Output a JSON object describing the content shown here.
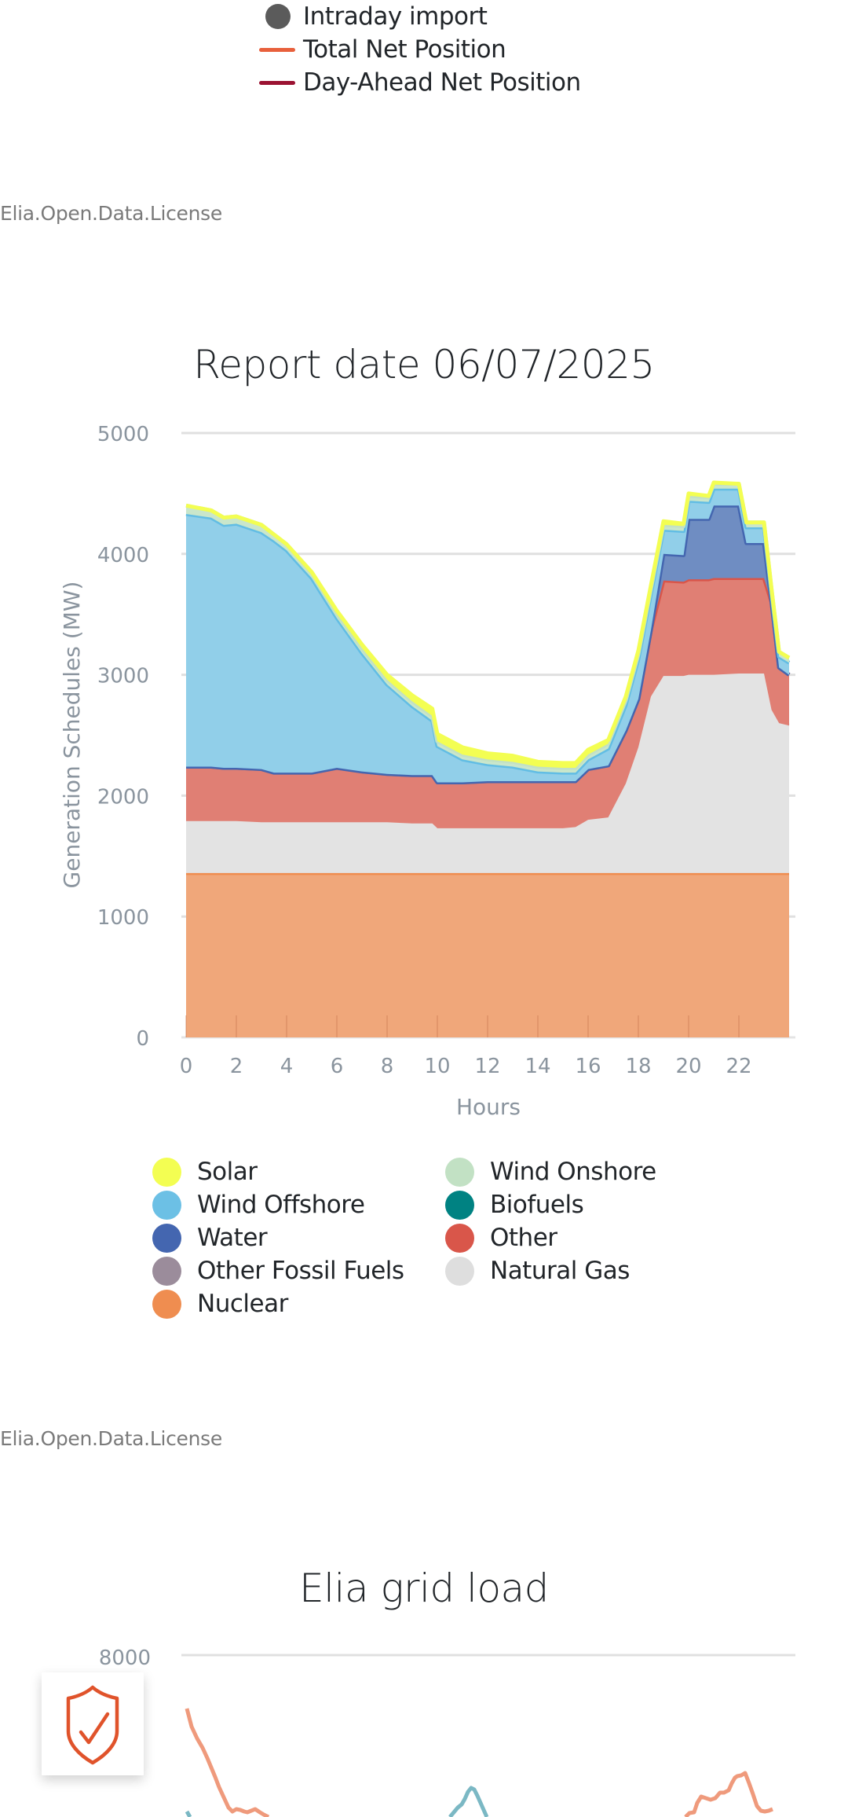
{
  "top_legend": {
    "items": [
      {
        "label": "Intraday import",
        "symbol": "circle",
        "color": "#5b5b5b"
      },
      {
        "label": "Total Net Position",
        "symbol": "line",
        "color": "#e8603c"
      },
      {
        "label": "Day-Ahead Net Position",
        "symbol": "line",
        "color": "#9b1232"
      }
    ]
  },
  "license_1": "Elia.Open.Data.License",
  "license_2": "Elia.Open.Data.License",
  "chart_data": [
    {
      "type": "area",
      "stacked": true,
      "title": "Report date 06/07/2025",
      "xlabel": "Hours",
      "ylabel": "Generation Schedules (MW)",
      "xlim": [
        0,
        24
      ],
      "ylim": [
        0,
        5000
      ],
      "yticks": [
        "0",
        "1000",
        "2000",
        "3000",
        "4000",
        "5000"
      ],
      "xticks": [
        "0",
        "2",
        "4",
        "6",
        "8",
        "10",
        "12",
        "14",
        "16",
        "18",
        "20",
        "22"
      ],
      "grid": true,
      "legend_position": "bottom",
      "x": [
        0,
        1,
        1.5,
        2,
        3,
        3.5,
        4,
        5,
        6,
        7,
        8,
        9,
        9.8,
        10,
        11,
        12,
        13,
        14,
        15,
        15.5,
        16,
        16.8,
        17.5,
        18,
        18.5,
        19,
        19.8,
        20,
        20.8,
        21,
        22,
        22.3,
        23,
        23.3,
        23.6,
        24
      ],
      "cumulative_tops_note": "values below are per-series contributions (MW) in stacking order bottom-to-top",
      "series": [
        {
          "name": "Nuclear",
          "color": "#ef8d50",
          "values": [
            1360,
            1360,
            1360,
            1360,
            1360,
            1360,
            1360,
            1360,
            1360,
            1360,
            1360,
            1360,
            1360,
            1360,
            1360,
            1360,
            1360,
            1360,
            1360,
            1360,
            1360,
            1360,
            1360,
            1360,
            1360,
            1360,
            1360,
            1360,
            1360,
            1360,
            1360,
            1360,
            1360,
            1360,
            1360,
            1360
          ]
        },
        {
          "name": "Natural Gas",
          "color": "#dedede",
          "values": [
            430,
            430,
            430,
            430,
            420,
            420,
            420,
            420,
            420,
            420,
            420,
            410,
            410,
            370,
            370,
            370,
            370,
            370,
            370,
            380,
            440,
            460,
            740,
            1040,
            1460,
            1630,
            1630,
            1640,
            1640,
            1640,
            1650,
            1650,
            1650,
            1350,
            1240,
            1220
          ]
        },
        {
          "name": "Other",
          "color": "#d9564a",
          "values": [
            450,
            450,
            440,
            440,
            440,
            410,
            410,
            410,
            450,
            420,
            400,
            400,
            400,
            380,
            380,
            390,
            390,
            390,
            390,
            380,
            420,
            430,
            440,
            400,
            550,
            790,
            780,
            790,
            790,
            800,
            790,
            790,
            790,
            890,
            460,
            420
          ]
        },
        {
          "name": "Other Fossil Fuels",
          "color": "#9b8c9b",
          "values": [
            0,
            0,
            0,
            0,
            0,
            0,
            0,
            0,
            0,
            0,
            0,
            0,
            0,
            0,
            0,
            0,
            0,
            0,
            0,
            0,
            0,
            0,
            0,
            0,
            0,
            0,
            0,
            0,
            0,
            0,
            0,
            0,
            0,
            0,
            0,
            0
          ]
        },
        {
          "name": "Biofuels",
          "color": "#008282",
          "values": [
            0,
            0,
            0,
            0,
            0,
            0,
            0,
            0,
            0,
            0,
            0,
            0,
            0,
            0,
            0,
            0,
            0,
            0,
            0,
            0,
            0,
            0,
            0,
            0,
            0,
            0,
            0,
            0,
            0,
            0,
            0,
            0,
            0,
            0,
            0,
            0
          ]
        },
        {
          "name": "Water",
          "color": "#4466b0",
          "values": [
            0,
            0,
            0,
            0,
            0,
            0,
            0,
            0,
            0,
            0,
            0,
            0,
            0,
            0,
            0,
            0,
            0,
            0,
            0,
            0,
            0,
            0,
            0,
            0,
            0,
            220,
            220,
            500,
            500,
            600,
            600,
            290,
            290,
            0,
            0,
            0
          ]
        },
        {
          "name": "Wind Offshore",
          "color": "#6cc0e5",
          "values": [
            2090,
            2060,
            2010,
            2020,
            1960,
            1920,
            1840,
            1610,
            1240,
            980,
            740,
            570,
            450,
            300,
            190,
            140,
            120,
            80,
            70,
            70,
            80,
            140,
            210,
            330,
            300,
            200,
            200,
            150,
            140,
            140,
            140,
            130,
            130,
            70,
            90,
            100
          ]
        },
        {
          "name": "Wind Onshore",
          "color": "#c2e1c4",
          "values": [
            70,
            60,
            60,
            60,
            60,
            50,
            50,
            40,
            40,
            40,
            40,
            40,
            40,
            40,
            40,
            40,
            40,
            40,
            40,
            40,
            40,
            40,
            40,
            40,
            40,
            40,
            40,
            40,
            40,
            40,
            40,
            40,
            40,
            40,
            40,
            40
          ]
        },
        {
          "name": "Solar",
          "color": "#f3fe52",
          "values": [
            0,
            0,
            0,
            0,
            0,
            0,
            0,
            10,
            20,
            30,
            40,
            50,
            60,
            60,
            60,
            50,
            50,
            40,
            40,
            40,
            40,
            30,
            30,
            30,
            30,
            30,
            20,
            20,
            10,
            10,
            0,
            0,
            0,
            0,
            0,
            0
          ]
        }
      ]
    },
    {
      "type": "line",
      "title": "Elia grid load",
      "yticks_visible": [
        "8000"
      ],
      "series_colors": [
        "#ef9a7c",
        "#7bb8c4"
      ],
      "note": "chart partially visible; only top portion rendered"
    }
  ],
  "gen_legend": {
    "items": [
      {
        "label": "Solar",
        "color": "#f3fe52"
      },
      {
        "label": "Wind Onshore",
        "color": "#c2e1c4"
      },
      {
        "label": "Wind Offshore",
        "color": "#6cc0e5"
      },
      {
        "label": "Biofuels",
        "color": "#008282"
      },
      {
        "label": "Water",
        "color": "#4466b0"
      },
      {
        "label": "Other",
        "color": "#d9564a"
      },
      {
        "label": "Other Fossil Fuels",
        "color": "#9b8c9b"
      },
      {
        "label": "Natural Gas",
        "color": "#dedede"
      },
      {
        "label": "Nuclear",
        "color": "#ef8d50"
      }
    ]
  },
  "shield_widget": {
    "icon": "shield-check-icon",
    "color": "#e0532b"
  }
}
